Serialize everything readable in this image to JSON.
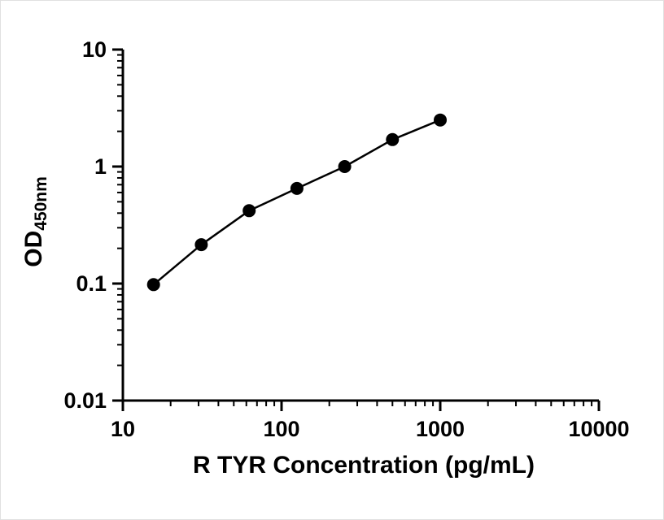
{
  "chart_data": {
    "type": "scatter",
    "title": "",
    "xlabel": "R TYR Concentration (pg/mL)",
    "ylabel_main": "OD",
    "ylabel_sub": "450nm",
    "xscale": "log",
    "yscale": "log",
    "xlim": [
      10,
      10000
    ],
    "ylim": [
      0.01,
      10
    ],
    "x": [
      15.6,
      31.2,
      62.5,
      125,
      250,
      500,
      1000
    ],
    "y": [
      0.098,
      0.215,
      0.42,
      0.65,
      1.0,
      1.7,
      2.5
    ],
    "xticks": {
      "values": [
        10,
        100,
        1000,
        10000
      ],
      "labels": [
        "10",
        "100",
        "1000",
        "10000"
      ]
    },
    "yticks": {
      "values": [
        0.01,
        0.1,
        1,
        10
      ],
      "labels": [
        "0.01",
        "0.1",
        "1",
        "10"
      ]
    },
    "grid": "off",
    "legend": "none",
    "line_color": "#000000",
    "marker_color": "#000000",
    "axis_color": "#000000",
    "marker_shape": "filled-circle"
  }
}
